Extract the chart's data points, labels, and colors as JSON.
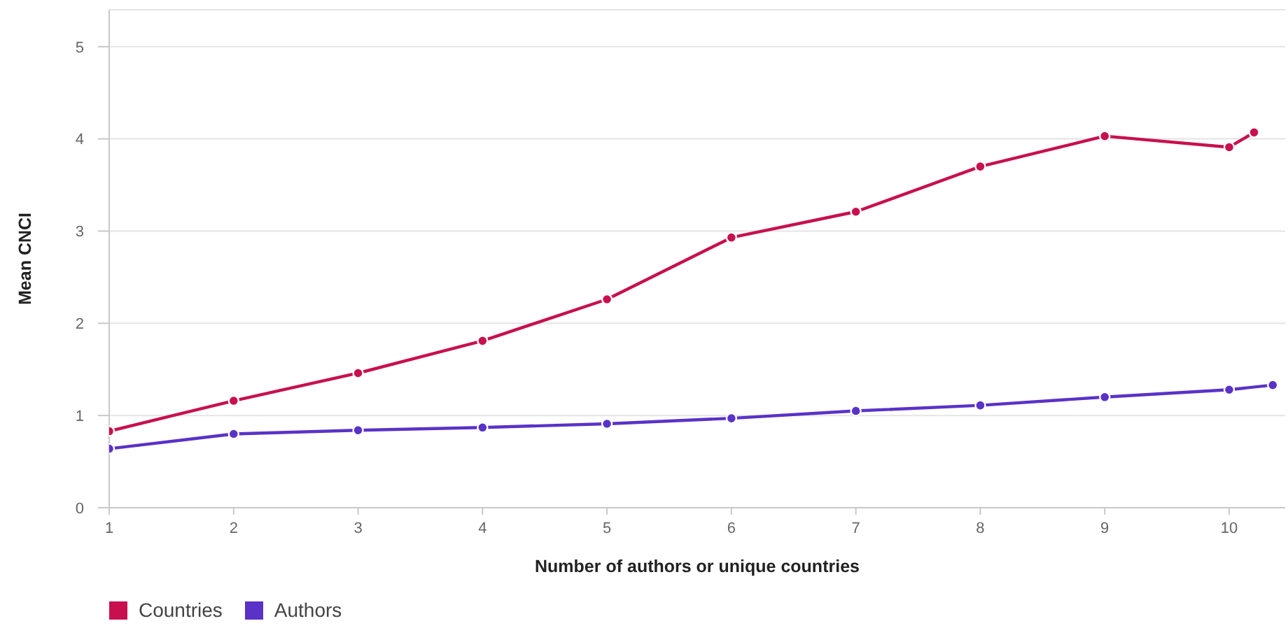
{
  "chart_data": {
    "type": "line",
    "xlabel": "Number of authors or unique countries",
    "ylabel": "Mean CNCI",
    "series": [
      {
        "name": "Countries",
        "color": "#c8104e",
        "x": [
          1,
          2,
          3,
          4,
          5,
          6,
          7,
          8,
          9,
          10,
          10.2
        ],
        "values": [
          0.83,
          1.16,
          1.46,
          1.81,
          2.26,
          2.93,
          3.21,
          3.7,
          4.03,
          3.91,
          4.07
        ]
      },
      {
        "name": "Authors",
        "color": "#5a32c8",
        "x": [
          1,
          2,
          3,
          4,
          5,
          6,
          7,
          8,
          9,
          10,
          10.35
        ],
        "values": [
          0.64,
          0.8,
          0.84,
          0.87,
          0.91,
          0.97,
          1.05,
          1.11,
          1.2,
          1.28,
          1.33
        ]
      }
    ],
    "xlim": [
      1,
      10.45
    ],
    "xticks": [
      1,
      2,
      3,
      4,
      5,
      6,
      7,
      8,
      9,
      10
    ],
    "ylim": [
      0,
      5.4
    ],
    "yticks": [
      0,
      1,
      2,
      3,
      4,
      5
    ],
    "grid": "y",
    "legend": "bottom left",
    "marker": "circle",
    "line_style": "solid"
  }
}
